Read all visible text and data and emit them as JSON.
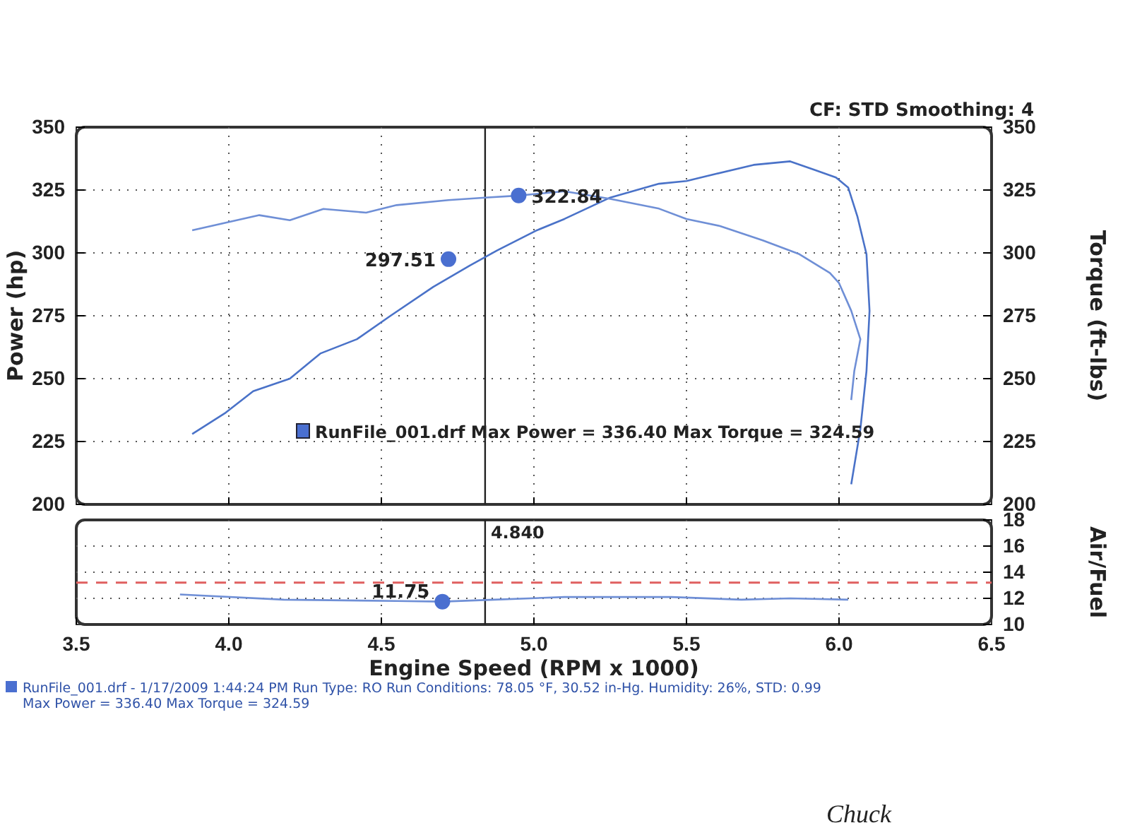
{
  "chart_data": [
    {
      "type": "line",
      "subtitle": "CF: STD  Smoothing: 4",
      "ylabel": "Power (hp)",
      "y2label": "Torque (ft-lbs)",
      "xlim": [
        3.5,
        6.5
      ],
      "xticks": [
        3.5,
        4,
        4.5,
        5,
        5.5,
        6,
        6.5
      ],
      "ylim": [
        200,
        350
      ],
      "yticks": [
        200,
        225,
        250,
        275,
        300,
        325,
        350
      ],
      "y2lim": [
        200,
        350
      ],
      "y2ticks": [
        200,
        225,
        250,
        275,
        300,
        325,
        350
      ],
      "tick_labels": "y",
      "grid": true,
      "marker": "none",
      "line_style": "solid",
      "series": [
        {
          "color": "#4a72c8",
          "x": [
            3.88,
            3.99,
            4.08,
            4.2,
            4.3,
            4.42,
            4.53,
            4.67,
            4.79,
            4.88,
            5.01,
            5.1,
            5.25,
            5.41,
            5.5,
            5.6,
            5.72,
            5.84,
            5.92,
            5.99,
            6.03,
            6.06,
            6.09,
            6.1,
            6.09,
            6.07,
            6.04
          ],
          "values": [
            228,
            236.5,
            245,
            250,
            260,
            265.7,
            275,
            286.5,
            295,
            301,
            309,
            313.5,
            322,
            327.5,
            328.6,
            331.5,
            335,
            336.4,
            333,
            330,
            326,
            314.6,
            299.5,
            277,
            253,
            230,
            208
          ]
        },
        {
          "color": "#6f8fd6",
          "x": [
            3.88,
            3.99,
            4.1,
            4.2,
            4.31,
            4.45,
            4.55,
            4.72,
            4.84,
            4.95,
            5.1,
            5.25,
            5.41,
            5.5,
            5.61,
            5.75,
            5.87,
            5.97,
            6.0,
            6.04,
            6.07,
            6.05,
            6.04
          ],
          "values": [
            309,
            312,
            315,
            313,
            317.5,
            316,
            319,
            321,
            322,
            322.8,
            324.5,
            321.5,
            317.6,
            313.5,
            310.7,
            305,
            299.5,
            292,
            288,
            277,
            265.7,
            253,
            241.5
          ]
        }
      ],
      "ref_lines": [
        {
          "axis": "x",
          "value": 4.84,
          "color": "#222222"
        }
      ],
      "annotations": [
        {
          "text": "297.51",
          "x": 4.72,
          "y": 297.51
        },
        {
          "text": "322.84",
          "x": 4.95,
          "y": 322.84
        },
        "RunFile_001.drf Max Power = 336.40    Max Torque = 324.59"
      ]
    },
    {
      "type": "line",
      "xlabel": "Engine Speed (RPM x 1000)",
      "ylabel": "Air/Fuel",
      "xlim": [
        3.5,
        6.5
      ],
      "xticks": [
        3.5,
        {
          "value": 4,
          "label": "4.0"
        },
        4.5,
        {
          "value": 5,
          "label": "5.0"
        },
        5.5,
        {
          "value": 6,
          "label": "6.0"
        },
        6.5
      ],
      "ylim": [
        10,
        18
      ],
      "yticks": [
        10,
        12,
        14,
        16,
        18
      ],
      "grid": true,
      "marker": "none",
      "line_style": "solid",
      "series": [
        {
          "color": "#6f8fd6",
          "x": [
            3.84,
            4.18,
            4.55,
            4.7,
            4.87,
            5.1,
            5.45,
            5.68,
            5.84,
            6.03
          ],
          "values": [
            12.3,
            11.9,
            11.8,
            11.75,
            11.9,
            12.1,
            12.1,
            11.9,
            12.0,
            11.9
          ]
        }
      ],
      "ref_lines": [
        {
          "axis": "x",
          "value": 4.84,
          "color": "#222222",
          "label": "4.840"
        },
        {
          "axis": "y",
          "value": 13.2,
          "color": "#e06060",
          "line_style": "dashed"
        }
      ],
      "annotations": [
        {
          "text": "11.75",
          "x": 4.7,
          "y": 11.75
        },
        "RunFile_001.drf - 1/17/2009 1:44:24 PM  Run Type: RO  Run Conditions: 78.05 °F, 30.52 in-Hg.  Humidity: 26%, STD: 0.99",
        "Max Power = 336.40  Max Torque = 324.59",
        "Chuck"
      ]
    }
  ]
}
